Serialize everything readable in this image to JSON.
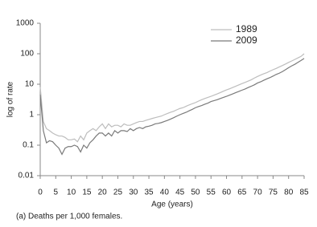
{
  "chart_data": {
    "type": "line",
    "x_label": "Age (years)",
    "y_label": "log of rate",
    "footnote": "(a) Deaths per 1,000 females.",
    "log_y": true,
    "legend": "upper right",
    "x": [
      0,
      1,
      2,
      3,
      4,
      5,
      6,
      7,
      8,
      9,
      10,
      11,
      12,
      13,
      14,
      15,
      16,
      17,
      18,
      19,
      20,
      21,
      22,
      23,
      24,
      25,
      26,
      27,
      28,
      29,
      30,
      31,
      32,
      33,
      34,
      35,
      36,
      37,
      38,
      39,
      40,
      41,
      42,
      43,
      44,
      45,
      46,
      47,
      48,
      49,
      50,
      51,
      52,
      53,
      54,
      55,
      56,
      57,
      58,
      59,
      60,
      61,
      62,
      63,
      64,
      65,
      66,
      67,
      68,
      69,
      70,
      71,
      72,
      73,
      74,
      75,
      76,
      77,
      78,
      79,
      80,
      81,
      82,
      83,
      84,
      85
    ],
    "series": [
      {
        "name": "1989",
        "color": "#bdbdbd",
        "values": [
          8,
          0.6,
          0.35,
          0.3,
          0.25,
          0.22,
          0.2,
          0.2,
          0.18,
          0.15,
          0.15,
          0.16,
          0.13,
          0.2,
          0.15,
          0.25,
          0.3,
          0.35,
          0.3,
          0.4,
          0.5,
          0.35,
          0.5,
          0.4,
          0.45,
          0.45,
          0.4,
          0.5,
          0.45,
          0.45,
          0.5,
          0.55,
          0.6,
          0.6,
          0.65,
          0.7,
          0.75,
          0.8,
          0.85,
          0.9,
          1.0,
          1.1,
          1.2,
          1.3,
          1.45,
          1.6,
          1.7,
          1.9,
          2.1,
          2.3,
          2.5,
          2.8,
          3.1,
          3.4,
          3.7,
          4.0,
          4.4,
          4.8,
          5.3,
          5.9,
          6.5,
          7.1,
          7.8,
          8.6,
          9.5,
          10.5,
          11.5,
          12.7,
          14,
          16,
          18,
          20,
          22,
          24,
          27,
          30,
          33,
          37,
          41,
          46,
          52,
          58,
          65,
          73,
          82,
          100
        ]
      },
      {
        "name": "2009",
        "color": "#7a7a7a",
        "values": [
          4.5,
          0.3,
          0.12,
          0.14,
          0.13,
          0.1,
          0.08,
          0.05,
          0.08,
          0.09,
          0.09,
          0.1,
          0.09,
          0.06,
          0.1,
          0.08,
          0.12,
          0.15,
          0.2,
          0.25,
          0.25,
          0.2,
          0.25,
          0.2,
          0.3,
          0.25,
          0.3,
          0.3,
          0.28,
          0.35,
          0.3,
          0.35,
          0.38,
          0.35,
          0.4,
          0.42,
          0.45,
          0.5,
          0.52,
          0.55,
          0.6,
          0.65,
          0.72,
          0.8,
          0.9,
          1.0,
          1.1,
          1.2,
          1.35,
          1.5,
          1.7,
          1.85,
          2.0,
          2.2,
          2.4,
          2.7,
          2.9,
          3.1,
          3.4,
          3.7,
          4.0,
          4.4,
          4.8,
          5.3,
          5.8,
          6.4,
          7.0,
          7.8,
          8.6,
          9.6,
          11,
          12,
          13.5,
          15,
          16.5,
          18.5,
          21,
          23,
          26,
          30,
          35,
          40,
          45,
          52,
          60,
          70
        ]
      }
    ],
    "xlim": [
      0,
      85
    ],
    "xticks": [
      0,
      5,
      10,
      15,
      20,
      25,
      30,
      35,
      40,
      45,
      50,
      55,
      60,
      65,
      70,
      75,
      80,
      85
    ],
    "ylim": [
      0.01,
      1000
    ],
    "yticks": [
      0.01,
      0.1,
      1,
      10,
      100,
      1000
    ]
  }
}
